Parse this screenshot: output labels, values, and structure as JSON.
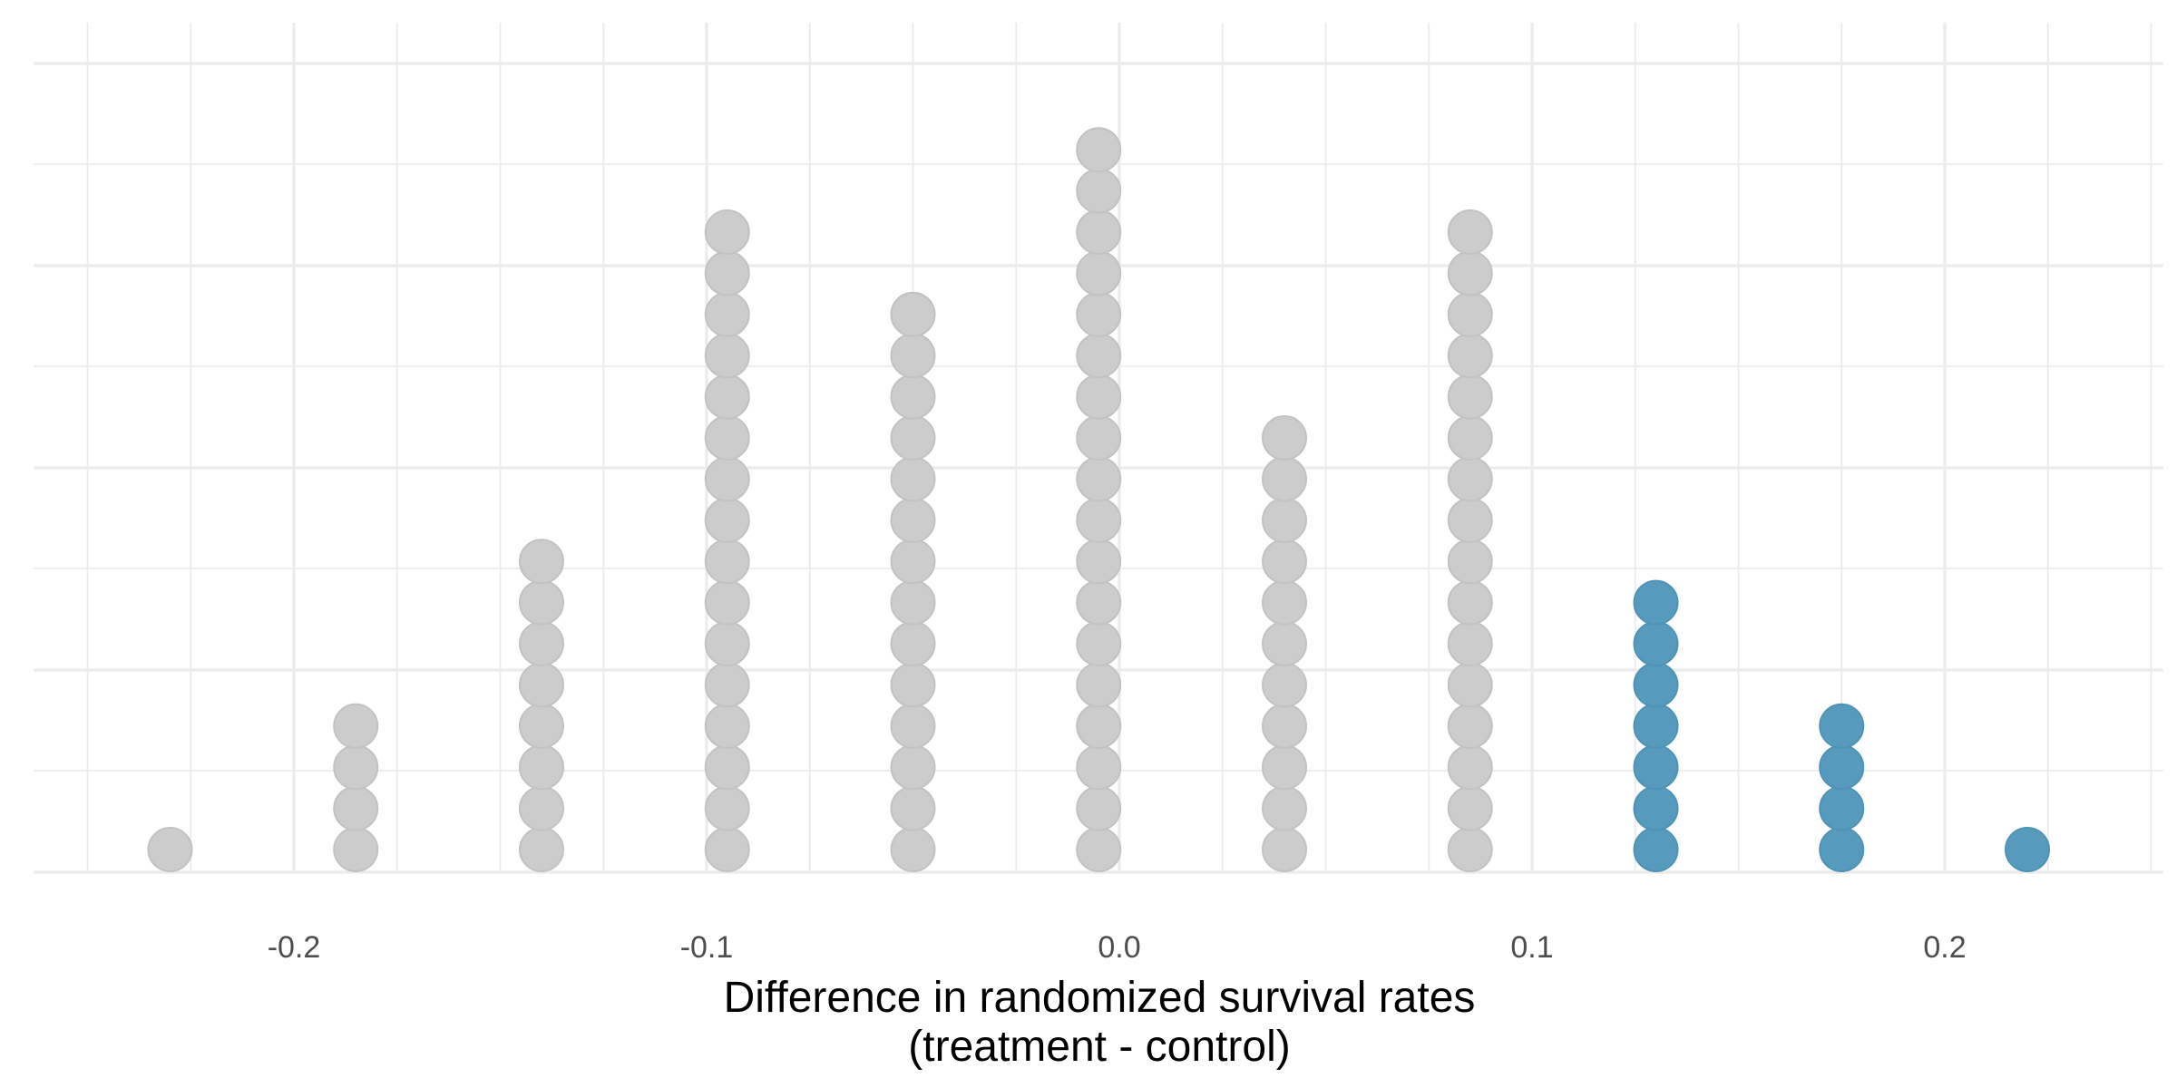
{
  "chart_data": {
    "type": "dotplot",
    "xlabel_lines": [
      "Difference in randomized survival rates",
      "(treatment - control)"
    ],
    "ylabel": "",
    "xlim": [
      -0.25,
      0.25
    ],
    "x_ticks": [
      -0.2,
      -0.1,
      0.0,
      0.1,
      0.2
    ],
    "x_tick_labels": [
      "-0.2",
      "-0.1",
      "0.0",
      "0.1",
      "0.2"
    ],
    "grid": true,
    "colors": {
      "default": "#cccccc",
      "highlight": "#569bbd",
      "grid": "#ebebeb"
    },
    "stacks": [
      {
        "x": -0.23,
        "count": 1,
        "highlight": false
      },
      {
        "x": -0.185,
        "count": 4,
        "highlight": false
      },
      {
        "x": -0.14,
        "count": 8,
        "highlight": false
      },
      {
        "x": -0.095,
        "count": 16,
        "highlight": false
      },
      {
        "x": -0.05,
        "count": 14,
        "highlight": false
      },
      {
        "x": -0.005,
        "count": 18,
        "highlight": false
      },
      {
        "x": 0.04,
        "count": 11,
        "highlight": false
      },
      {
        "x": 0.085,
        "count": 16,
        "highlight": false
      },
      {
        "x": 0.13,
        "count": 7,
        "highlight": true
      },
      {
        "x": 0.175,
        "count": 4,
        "highlight": true
      },
      {
        "x": 0.22,
        "count": 1,
        "highlight": true
      }
    ]
  }
}
